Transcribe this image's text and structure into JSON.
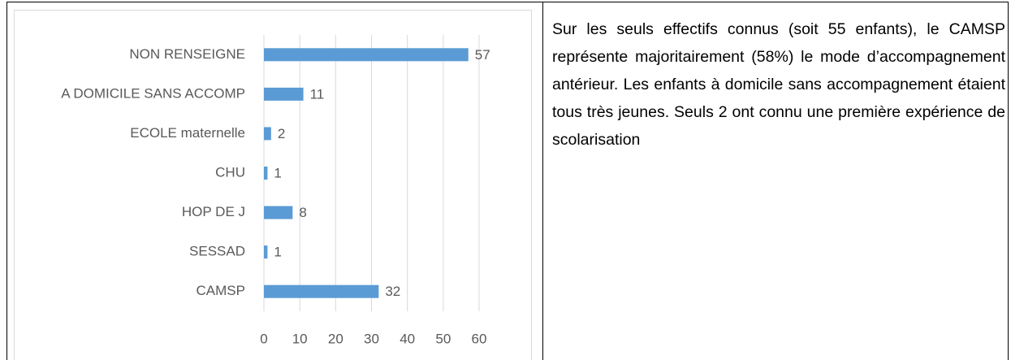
{
  "chart_data": {
    "type": "bar",
    "orientation": "horizontal",
    "categories": [
      "NON RENSEIGNE",
      "A DOMICILE SANS ACCOMP",
      "ECOLE maternelle",
      "CHU",
      "HOP DE J",
      "SESSAD",
      "CAMSP"
    ],
    "values": [
      57,
      11,
      2,
      1,
      8,
      1,
      32
    ],
    "color": "#5b9bd5",
    "xlim": [
      0,
      60
    ],
    "xticks": [
      0,
      10,
      20,
      30,
      40,
      50,
      60
    ],
    "grid": true
  },
  "cell_text": "Sur les seuls effectifs connus (soit 55 enfants), le CAMSP représente majoritairement (58%) le mode d’accompagnement antérieur. Les enfants à domicile sans accompagnement étaient tous très jeunes. Seuls 2 ont connu une première expérience de scolarisation"
}
